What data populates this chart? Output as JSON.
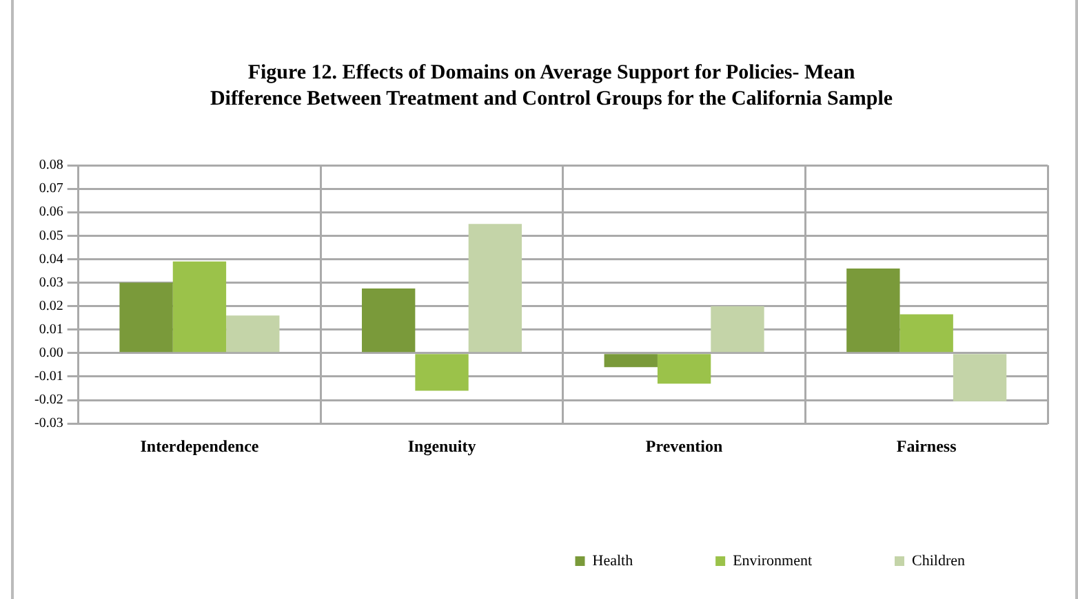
{
  "chart_data": {
    "type": "bar",
    "title": "Figure 12. Effects of Domains on Average Support for Policies- Mean Difference Between Treatment and Control Groups for the California Sample",
    "categories": [
      "Interdependence",
      "Ingenuity",
      "Prevention",
      "Fairness"
    ],
    "series": [
      {
        "name": "Health",
        "color": "#7a9a3a",
        "values": [
          0.03,
          0.0275,
          -0.006,
          0.036
        ]
      },
      {
        "name": "Environment",
        "color": "#9bc24a",
        "values": [
          0.039,
          -0.016,
          -0.013,
          0.0165
        ]
      },
      {
        "name": "Children",
        "color": "#c4d4a8",
        "values": [
          0.016,
          0.055,
          0.02,
          -0.0205
        ]
      }
    ],
    "ylim": [
      -0.03,
      0.08
    ],
    "yticks": [
      {
        "value": -0.03,
        "label": "-0.03"
      },
      {
        "value": -0.02,
        "label": "-0.02"
      },
      {
        "value": -0.01,
        "label": "-0.01"
      },
      {
        "value": 0,
        "label": "0.00"
      },
      {
        "value": 0.01,
        "label": "0.01"
      },
      {
        "value": 0.02,
        "label": "0.02"
      },
      {
        "value": 0.03,
        "label": "0.03"
      },
      {
        "value": 0.04,
        "label": "0.04"
      },
      {
        "value": 0.05,
        "label": "0.05"
      },
      {
        "value": 0.06,
        "label": "0.06"
      },
      {
        "value": 0.07,
        "label": "0.07"
      },
      {
        "value": 0.08,
        "label": "0.08"
      }
    ],
    "grid": true,
    "legend": "bottom right"
  }
}
